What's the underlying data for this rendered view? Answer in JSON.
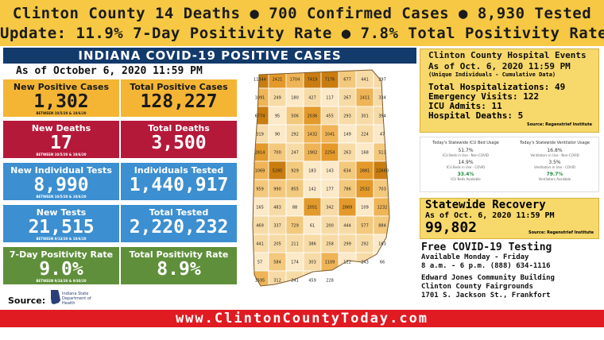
{
  "banner": {
    "line1": "Clinton County 14 Deaths  ● 700 Confirmed Cases  ● 8,930 Tested",
    "line2": "Update:  11.9% 7-Day Positivity Rate ● 7.8% Total Positivity Rate"
  },
  "title": "INDIANA COVID-19 POSITIVE CASES",
  "as_of": "As of October 6, 2020 11:59 PM",
  "stats": [
    {
      "label": "New Positive Cases",
      "value": "1,302",
      "note": "BETWEEN 10/5/20 & 10/6/20"
    },
    {
      "label": "Total Positive Cases",
      "value": "128,227",
      "note": ""
    },
    {
      "label": "New Deaths",
      "value": "17",
      "note": "BETWEEN 10/5/20 & 10/6/20"
    },
    {
      "label": "Total Deaths",
      "value": "3,500",
      "note": ""
    },
    {
      "label": "New Individual Tests",
      "value": "8,990",
      "note": "BETWEEN 10/5/20 & 10/6/20"
    },
    {
      "label": "Individuals Tested",
      "value": "1,440,917",
      "note": ""
    },
    {
      "label": "New Tests",
      "value": "21,515",
      "note": "BETWEEN 9/13/20 & 10/6/20"
    },
    {
      "label": "Total Tested",
      "value": "2,220,232",
      "note": ""
    },
    {
      "label": "7-Day Positivity Rate",
      "value": "9.0%",
      "note": "BETWEEN 9/24/20 & 9/30/20"
    },
    {
      "label": "Total Positivity Rate",
      "value": "8.9%",
      "note": ""
    }
  ],
  "source_label": "Source:",
  "isdh": {
    "line1": "Indiana State",
    "line2": "Department of Health"
  },
  "map_labels": [
    "11344",
    "2421",
    "1704",
    "7419",
    "7176",
    "677",
    "441",
    "297",
    "1091",
    "249",
    "180",
    "427",
    "117",
    "267",
    "1411",
    "334",
    "6774",
    "95",
    "506",
    "2036",
    "455",
    "293",
    "301",
    "394",
    "319",
    "90",
    "292",
    "1432",
    "1041",
    "149",
    "224",
    "47",
    "2814",
    "700",
    "247",
    "1902",
    "2254",
    "263",
    "168",
    "513",
    "1069",
    "5285",
    "929",
    "183",
    "143",
    "634",
    "2881",
    "22660",
    "959",
    "990",
    "855",
    "142",
    "177",
    "786",
    "2532",
    "703",
    "165",
    "483",
    "88",
    "2051",
    "342",
    "2869",
    "109",
    "1232",
    "469",
    "337",
    "729",
    "61",
    "200",
    "444",
    "577",
    "884",
    "441",
    "205",
    "211",
    "386",
    "258",
    "299",
    "292",
    "163",
    "57",
    "584",
    "174",
    "303",
    "1109",
    "122",
    "243",
    "66",
    "1595",
    "312",
    "241",
    "459",
    "228"
  ],
  "hospital": {
    "title": "Clinton County Hospital Events",
    "asof": "As of Oct. 6, 2020 11:59 PM",
    "sub": "(Unique Individuals - Cumulative Data)",
    "stats": [
      "Total Hospitalizations: 49",
      "Emergency Visits: 122",
      "ICU Admits: 11",
      "Hospital Deaths: 5"
    ],
    "source": "Source: Regenstrief Institute"
  },
  "usage": {
    "icu_header": "Today's Statewide ICU Bed Usage",
    "vent_header": "Today's Statewide Ventilator Usage",
    "icu": [
      {
        "pct": "51.7%",
        "cap": "ICU Beds in Use - Non-COVID"
      },
      {
        "pct": "14.9%",
        "cap": "ICU Beds in Use - COVID"
      },
      {
        "pct": "33.4%",
        "cap": "ICU Beds Available"
      }
    ],
    "vent": [
      {
        "pct": "16.8%",
        "cap": "Ventilators in Use - Non-COVID"
      },
      {
        "pct": "3.5%",
        "cap": "Ventilators in Use - COVID"
      },
      {
        "pct": "79.7%",
        "cap": "Ventilators Available"
      }
    ]
  },
  "recovery": {
    "title": "Statewide Recovery",
    "asof": "As of Oct. 6, 2020 11:59 PM",
    "value": "99,802",
    "source": "Source: Regenstrief Institute"
  },
  "testing": {
    "title": "Free COVID-19 Testing",
    "days": "Available Monday - Friday",
    "hours": "8 a.m. - 6 p.m.   (888) 634-1116",
    "loc1": "Edward Jones Community Building",
    "loc2": "Clinton County Fairgrounds",
    "loc3": "1701 S. Jackson St., Frankfort"
  },
  "footer": "www.ClintonCountyToday.com"
}
